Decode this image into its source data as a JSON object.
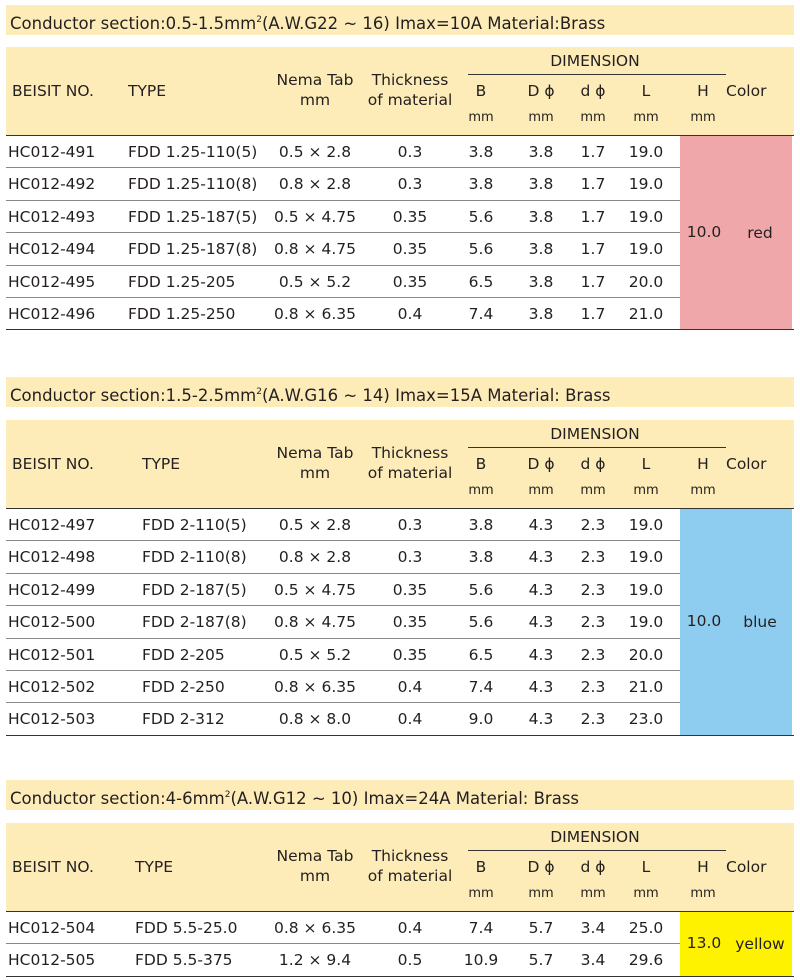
{
  "headers": {
    "beisit_no": "BEISIT NO.",
    "type": "TYPE",
    "nema_tab_1": "Nema Tab",
    "nema_tab_2": "mm",
    "thickness_1": "Thickness",
    "thickness_2": "of material",
    "dimension": "DIMENSION",
    "b": "B",
    "D": "D ϕ",
    "d": "d ϕ",
    "L": "L",
    "H": "H",
    "color": "Color",
    "unit": "mm"
  },
  "sections": [
    {
      "title_pre": "Conductor section:0.5-1.5mm",
      "title_sup": "2",
      "title_post": "(A.W.G22 ~ 16) Imax=10A     Material:Brass",
      "h_value": "10.0",
      "color_name": "red",
      "color_hex": "#f0a7a9",
      "rows": [
        {
          "no": "HC012-491",
          "type": "FDD 1.25-110(5)",
          "tab": "0.5 × 2.8",
          "thick": "0.3",
          "b": "3.8",
          "D": "3.8",
          "d": "1.7",
          "L": "19.0"
        },
        {
          "no": "HC012-492",
          "type": "FDD 1.25-110(8)",
          "tab": "0.8 × 2.8",
          "thick": "0.3",
          "b": "3.8",
          "D": "3.8",
          "d": "1.7",
          "L": "19.0"
        },
        {
          "no": "HC012-493",
          "type": "FDD 1.25-187(5)",
          "tab": "0.5 × 4.75",
          "thick": "0.35",
          "b": "5.6",
          "D": "3.8",
          "d": "1.7",
          "L": "19.0"
        },
        {
          "no": "HC012-494",
          "type": "FDD 1.25-187(8)",
          "tab": "0.8 × 4.75",
          "thick": "0.35",
          "b": "5.6",
          "D": "3.8",
          "d": "1.7",
          "L": "19.0"
        },
        {
          "no": "HC012-495",
          "type": "FDD 1.25-205",
          "tab": "0.5 × 5.2",
          "thick": "0.35",
          "b": "6.5",
          "D": "3.8",
          "d": "1.7",
          "L": "20.0"
        },
        {
          "no": "HC012-496",
          "type": "FDD 1.25-250",
          "tab": "0.8 × 6.35",
          "thick": "0.4",
          "b": "7.4",
          "D": "3.8",
          "d": "1.7",
          "L": "21.0"
        }
      ]
    },
    {
      "title_pre": "Conductor section:1.5-2.5mm",
      "title_sup": "2",
      "title_post": "(A.W.G16 ~ 14)  Imax=15A     Material: Brass",
      "h_value": "10.0",
      "color_name": "blue",
      "color_hex": "#8fcdf0",
      "rows": [
        {
          "no": "HC012-497",
          "type": "FDD 2-110(5)",
          "tab": "0.5 × 2.8",
          "thick": "0.3",
          "b": "3.8",
          "D": "4.3",
          "d": "2.3",
          "L": "19.0"
        },
        {
          "no": "HC012-498",
          "type": "FDD 2-110(8)",
          "tab": "0.8 × 2.8",
          "thick": "0.3",
          "b": "3.8",
          "D": "4.3",
          "d": "2.3",
          "L": "19.0"
        },
        {
          "no": "HC012-499",
          "type": "FDD 2-187(5)",
          "tab": "0.5 × 4.75",
          "thick": "0.35",
          "b": "5.6",
          "D": "4.3",
          "d": "2.3",
          "L": "19.0"
        },
        {
          "no": "HC012-500",
          "type": "FDD 2-187(8)",
          "tab": "0.8 × 4.75",
          "thick": "0.35",
          "b": "5.6",
          "D": "4.3",
          "d": "2.3",
          "L": "19.0"
        },
        {
          "no": "HC012-501",
          "type": "FDD 2-205",
          "tab": "0.5 × 5.2",
          "thick": "0.35",
          "b": "6.5",
          "D": "4.3",
          "d": "2.3",
          "L": "20.0"
        },
        {
          "no": "HC012-502",
          "type": "FDD 2-250",
          "tab": "0.8 × 6.35",
          "thick": "0.4",
          "b": "7.4",
          "D": "4.3",
          "d": "2.3",
          "L": "21.0"
        },
        {
          "no": "HC012-503",
          "type": "FDD 2-312",
          "tab": "0.8 × 8.0",
          "thick": "0.4",
          "b": "9.0",
          "D": "4.3",
          "d": "2.3",
          "L": "23.0"
        }
      ]
    },
    {
      "title_pre": "Conductor section:4-6mm",
      "title_sup": "2",
      "title_post": "(A.W.G12 ~ 10)  Imax=24A  Material: Brass",
      "h_value": "13.0",
      "color_name": "yellow",
      "color_hex": "#fff200",
      "rows": [
        {
          "no": "HC012-504",
          "type": "FDD 5.5-25.0",
          "tab": "0.8 × 6.35",
          "thick": "0.4",
          "b": "7.4",
          "D": "5.7",
          "d": "3.4",
          "L": "25.0"
        },
        {
          "no": "HC012-505",
          "type": "FDD 5.5-375",
          "tab": "1.2 × 9.4",
          "thick": "0.5",
          "b": "10.9",
          "D": "5.7",
          "d": "3.4",
          "L": "29.6"
        }
      ]
    }
  ]
}
